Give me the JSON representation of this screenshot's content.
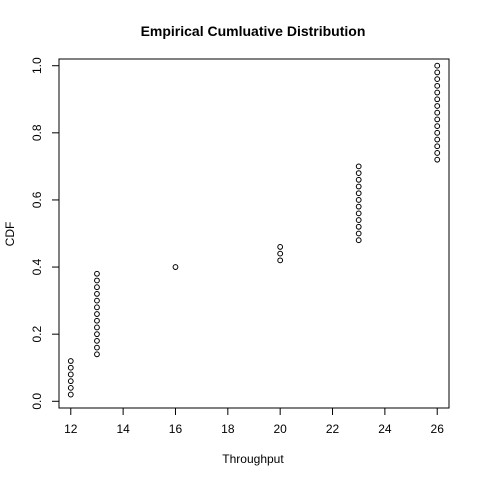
{
  "chart_data": {
    "type": "scatter",
    "title": "Empirical Cumluative Distribution",
    "xlabel": "Throughput",
    "ylabel": "CDF",
    "xlim": [
      11.55,
      26.45
    ],
    "ylim": [
      -0.02,
      1.02
    ],
    "xticks": [
      12,
      14,
      16,
      18,
      20,
      22,
      24,
      26
    ],
    "yticks": [
      0.0,
      0.2,
      0.4,
      0.6,
      0.8,
      1.0
    ],
    "ytick_labels": [
      "0.0",
      "0.2",
      "0.4",
      "0.6",
      "0.8",
      "1.0"
    ],
    "grid": false,
    "marker": "open-circle",
    "series": [
      {
        "points": [
          [
            12,
            0.02
          ],
          [
            12,
            0.04
          ],
          [
            12,
            0.06
          ],
          [
            12,
            0.08
          ],
          [
            12,
            0.1
          ],
          [
            12,
            0.12
          ],
          [
            13,
            0.14
          ],
          [
            13,
            0.16
          ],
          [
            13,
            0.18
          ],
          [
            13,
            0.2
          ],
          [
            13,
            0.22
          ],
          [
            13,
            0.24
          ],
          [
            13,
            0.26
          ],
          [
            13,
            0.28
          ],
          [
            13,
            0.3
          ],
          [
            13,
            0.32
          ],
          [
            13,
            0.34
          ],
          [
            13,
            0.36
          ],
          [
            13,
            0.38
          ],
          [
            16,
            0.4
          ],
          [
            20,
            0.42
          ],
          [
            20,
            0.44
          ],
          [
            20,
            0.46
          ],
          [
            23,
            0.48
          ],
          [
            23,
            0.5
          ],
          [
            23,
            0.52
          ],
          [
            23,
            0.54
          ],
          [
            23,
            0.56
          ],
          [
            23,
            0.58
          ],
          [
            23,
            0.6
          ],
          [
            23,
            0.62
          ],
          [
            23,
            0.64
          ],
          [
            23,
            0.66
          ],
          [
            23,
            0.68
          ],
          [
            23,
            0.7
          ],
          [
            26,
            0.72
          ],
          [
            26,
            0.74
          ],
          [
            26,
            0.76
          ],
          [
            26,
            0.78
          ],
          [
            26,
            0.8
          ],
          [
            26,
            0.82
          ],
          [
            26,
            0.84
          ],
          [
            26,
            0.86
          ],
          [
            26,
            0.88
          ],
          [
            26,
            0.9
          ],
          [
            26,
            0.92
          ],
          [
            26,
            0.94
          ],
          [
            26,
            0.96
          ],
          [
            26,
            0.98
          ],
          [
            26,
            1.0
          ]
        ]
      }
    ]
  }
}
